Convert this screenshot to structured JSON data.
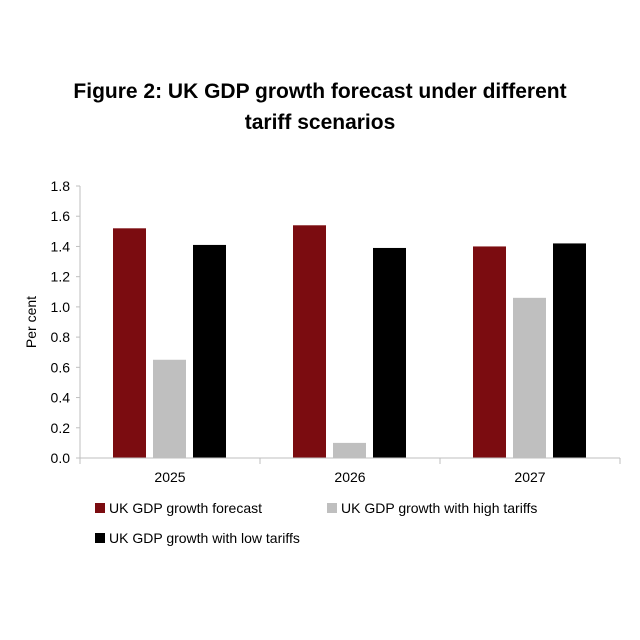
{
  "chart_data": {
    "type": "bar",
    "title": [
      "Figure 2: UK GDP growth forecast under different",
      "tariff scenarios"
    ],
    "xlabel": "",
    "ylabel": "Per cent",
    "categories": [
      "2025",
      "2026",
      "2027"
    ],
    "ylim": [
      0,
      1.8
    ],
    "yticks": [
      "0.0",
      "0.2",
      "0.4",
      "0.6",
      "0.8",
      "1.0",
      "1.2",
      "1.4",
      "1.6",
      "1.8"
    ],
    "grid": false,
    "legend_position": "bottom",
    "series": [
      {
        "name": "UK GDP growth forecast",
        "color": "#7b0c10",
        "values": [
          1.52,
          1.54,
          1.4
        ]
      },
      {
        "name": "UK GDP growth with high tariffs",
        "color": "#bfbfbf",
        "values": [
          0.65,
          0.1,
          1.06
        ]
      },
      {
        "name": "UK GDP growth with low tariffs",
        "color": "#000000",
        "values": [
          1.41,
          1.39,
          1.42
        ]
      }
    ]
  }
}
